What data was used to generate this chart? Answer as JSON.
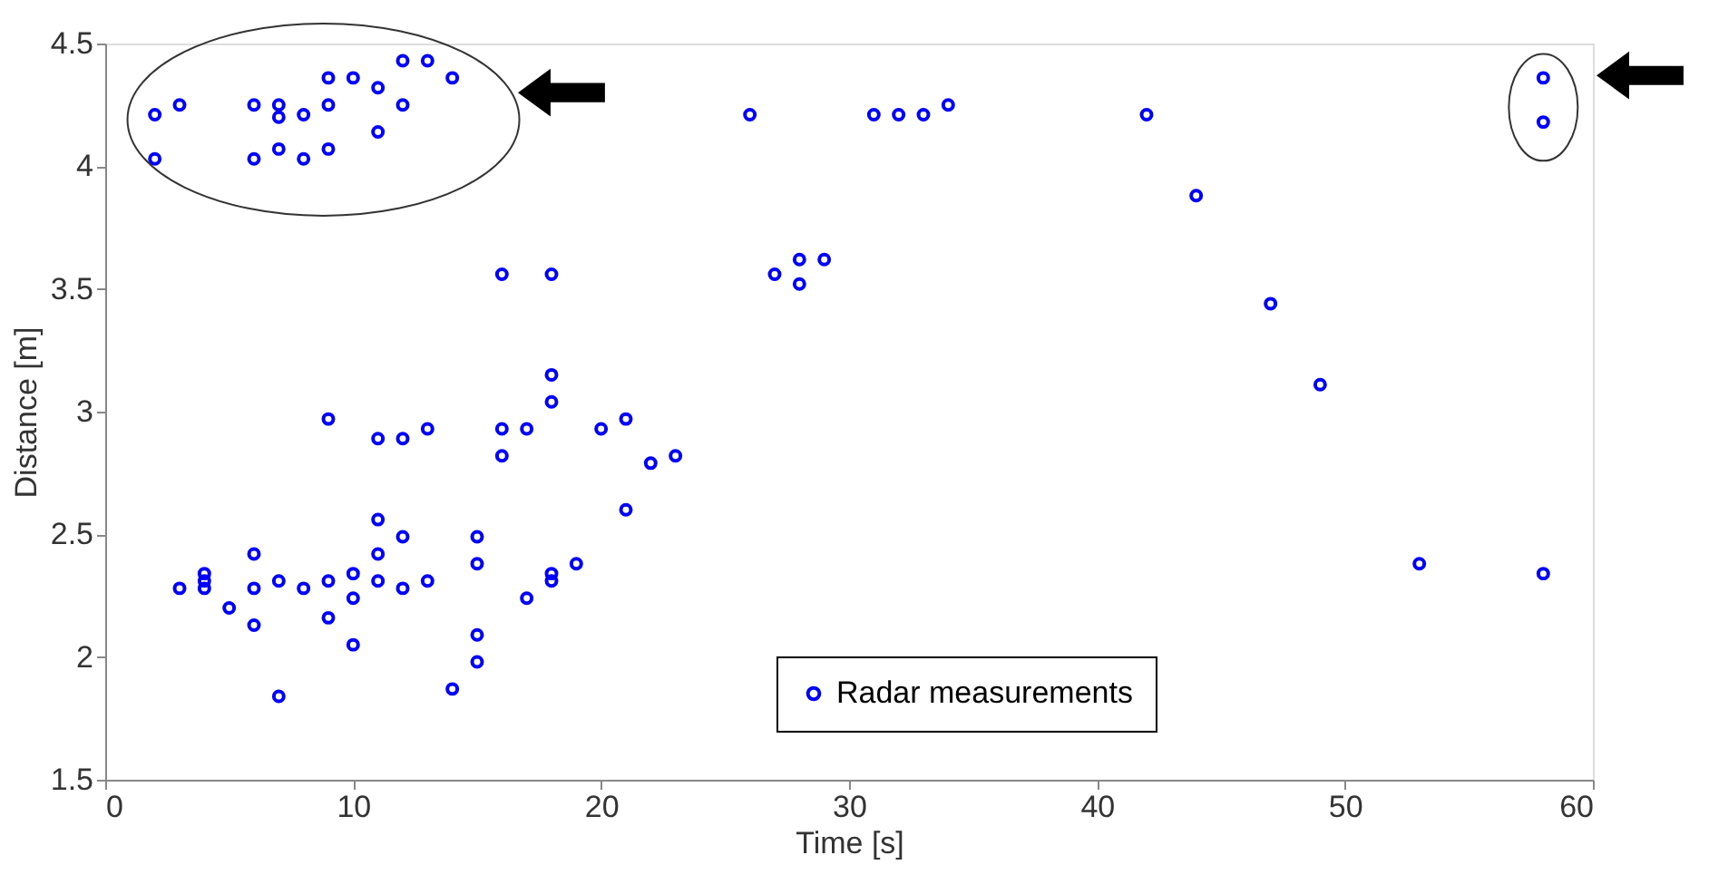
{
  "chart_data": {
    "type": "scatter",
    "xlabel": "Time [s]",
    "ylabel": "Distance [m]",
    "xlim": [
      0,
      60
    ],
    "xticks": [
      0,
      10,
      20,
      30,
      40,
      50,
      60
    ],
    "ylim": [
      1.5,
      4.5
    ],
    "yticks": [
      1.5,
      2,
      2.5,
      3,
      3.5,
      4,
      4.5
    ],
    "grid": false,
    "legend": "bottom",
    "marker": "circle",
    "series": [
      {
        "name": "Radar measurements",
        "color": "#0000ff",
        "x": [
          2,
          3,
          2,
          6,
          6,
          7,
          7,
          7,
          8,
          8,
          9,
          9,
          9,
          10,
          11,
          11,
          12,
          12,
          13,
          14,
          26,
          31,
          32,
          33,
          34,
          42,
          44,
          58,
          58,
          27,
          28,
          29,
          28,
          16,
          18,
          47,
          49,
          53,
          58,
          9,
          11,
          12,
          13,
          16,
          16,
          17,
          18,
          18,
          20,
          21,
          22,
          23,
          21,
          11,
          12,
          15,
          15,
          11,
          6,
          3,
          4,
          4,
          4,
          5,
          6,
          6,
          7,
          8,
          9,
          9,
          10,
          10,
          10,
          11,
          12,
          13,
          14,
          15,
          15,
          17,
          18,
          18,
          19,
          7
        ],
        "values": [
          4.21,
          4.25,
          4.03,
          4.25,
          4.03,
          4.25,
          4.2,
          4.07,
          4.21,
          4.03,
          4.36,
          4.25,
          4.07,
          4.36,
          4.32,
          4.14,
          4.43,
          4.25,
          4.43,
          4.36,
          4.21,
          4.21,
          4.21,
          4.21,
          4.25,
          4.21,
          3.88,
          4.36,
          4.18,
          3.56,
          3.62,
          3.62,
          3.52,
          3.56,
          3.56,
          3.44,
          3.11,
          2.38,
          2.34,
          2.97,
          2.89,
          2.89,
          2.93,
          2.93,
          2.82,
          2.93,
          3.15,
          3.04,
          2.93,
          2.97,
          2.79,
          2.82,
          2.6,
          2.56,
          2.49,
          2.49,
          2.38,
          2.42,
          2.42,
          2.28,
          2.34,
          2.31,
          2.28,
          2.2,
          2.28,
          2.13,
          2.31,
          2.28,
          2.31,
          2.16,
          2.34,
          2.24,
          2.05,
          2.31,
          2.28,
          2.31,
          1.87,
          2.09,
          1.98,
          2.24,
          2.34,
          2.31,
          2.38,
          1.84
        ]
      }
    ]
  }
}
